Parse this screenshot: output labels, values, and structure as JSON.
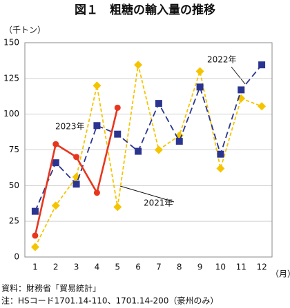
{
  "chart_data": {
    "type": "line",
    "title": "図１　粗糖の輸入量の推移",
    "y_label": "（千トン）",
    "x_label": "（月）",
    "categories": [
      "1",
      "2",
      "3",
      "4",
      "5",
      "6",
      "7",
      "8",
      "9",
      "10",
      "11",
      "12"
    ],
    "ylim": [
      0,
      150
    ],
    "yticks": [
      0,
      25,
      50,
      75,
      100,
      125,
      150
    ],
    "grid": true,
    "series": [
      {
        "name": "2021年",
        "color": "#f5c400",
        "style": "dashed",
        "marker": "diamond",
        "values": [
          7,
          36,
          56,
          120,
          35,
          134.5,
          75,
          85,
          130,
          62,
          111,
          105.5
        ]
      },
      {
        "name": "2022年",
        "color": "#2b3590",
        "style": "dashed",
        "marker": "square",
        "values": [
          32,
          66,
          51,
          92,
          86,
          74,
          107.5,
          81,
          119,
          72,
          117,
          134.5
        ]
      },
      {
        "name": "2023年",
        "color": "#e8361e",
        "style": "solid",
        "marker": "circle",
        "values": [
          15,
          79,
          70,
          45,
          104.5,
          null,
          null,
          null,
          null,
          null,
          null,
          null
        ]
      }
    ],
    "notes": [
      "資料：財務省「貿易統計」",
      "注：HSコード1701.14-110、1701.14-200（豪州のみ）"
    ]
  }
}
